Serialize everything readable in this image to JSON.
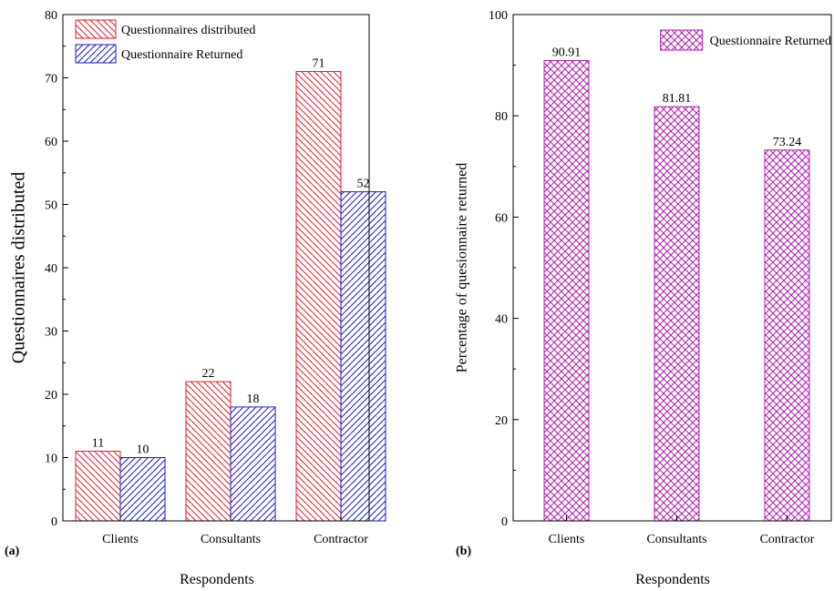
{
  "colors": {
    "distributed": "#e8192c",
    "returned": "#1a1acc",
    "percent": "#b01cb0"
  },
  "chart_data": [
    {
      "panel_label": "(a)",
      "type": "bar",
      "categories": [
        "Clients",
        "Consultants",
        "Contractor"
      ],
      "series": [
        {
          "name": "Questionnaires distributed",
          "values": [
            11,
            22,
            71
          ],
          "labels": [
            "11",
            "22",
            "71"
          ],
          "pattern": "diagonal-hatch-down"
        },
        {
          "name": "Questionnaire Returned",
          "values": [
            10,
            18,
            52
          ],
          "labels": [
            "10",
            "18",
            "52"
          ],
          "pattern": "diagonal-hatch-up"
        }
      ],
      "xlabel": "Respondents",
      "ylabel": "Questionnaires distributed",
      "ylim": [
        0,
        80
      ],
      "yticks": [
        0,
        10,
        20,
        30,
        40,
        50,
        60,
        70,
        80
      ],
      "ytick_labels": [
        "0",
        "10",
        "20",
        "30",
        "40",
        "50",
        "60",
        "70",
        "80"
      ],
      "legend_position": "top-left",
      "grid": false
    },
    {
      "panel_label": "(b)",
      "type": "bar",
      "categories": [
        "Clients",
        "Consultants",
        "Contractor"
      ],
      "series": [
        {
          "name": "Questionnaire Returned",
          "values": [
            90.91,
            81.81,
            73.24
          ],
          "labels": [
            "90.91",
            "81.81",
            "73.24"
          ],
          "pattern": "cross-hatch"
        }
      ],
      "xlabel": "Respondents",
      "ylabel": "Percentage of quesionnaire returned",
      "ylim": [
        0,
        100
      ],
      "yticks": [
        0,
        20,
        40,
        60,
        80,
        100
      ],
      "ytick_labels": [
        "0",
        "20",
        "40",
        "60",
        "80",
        "100"
      ],
      "legend_position": "top-right",
      "grid": false
    }
  ]
}
